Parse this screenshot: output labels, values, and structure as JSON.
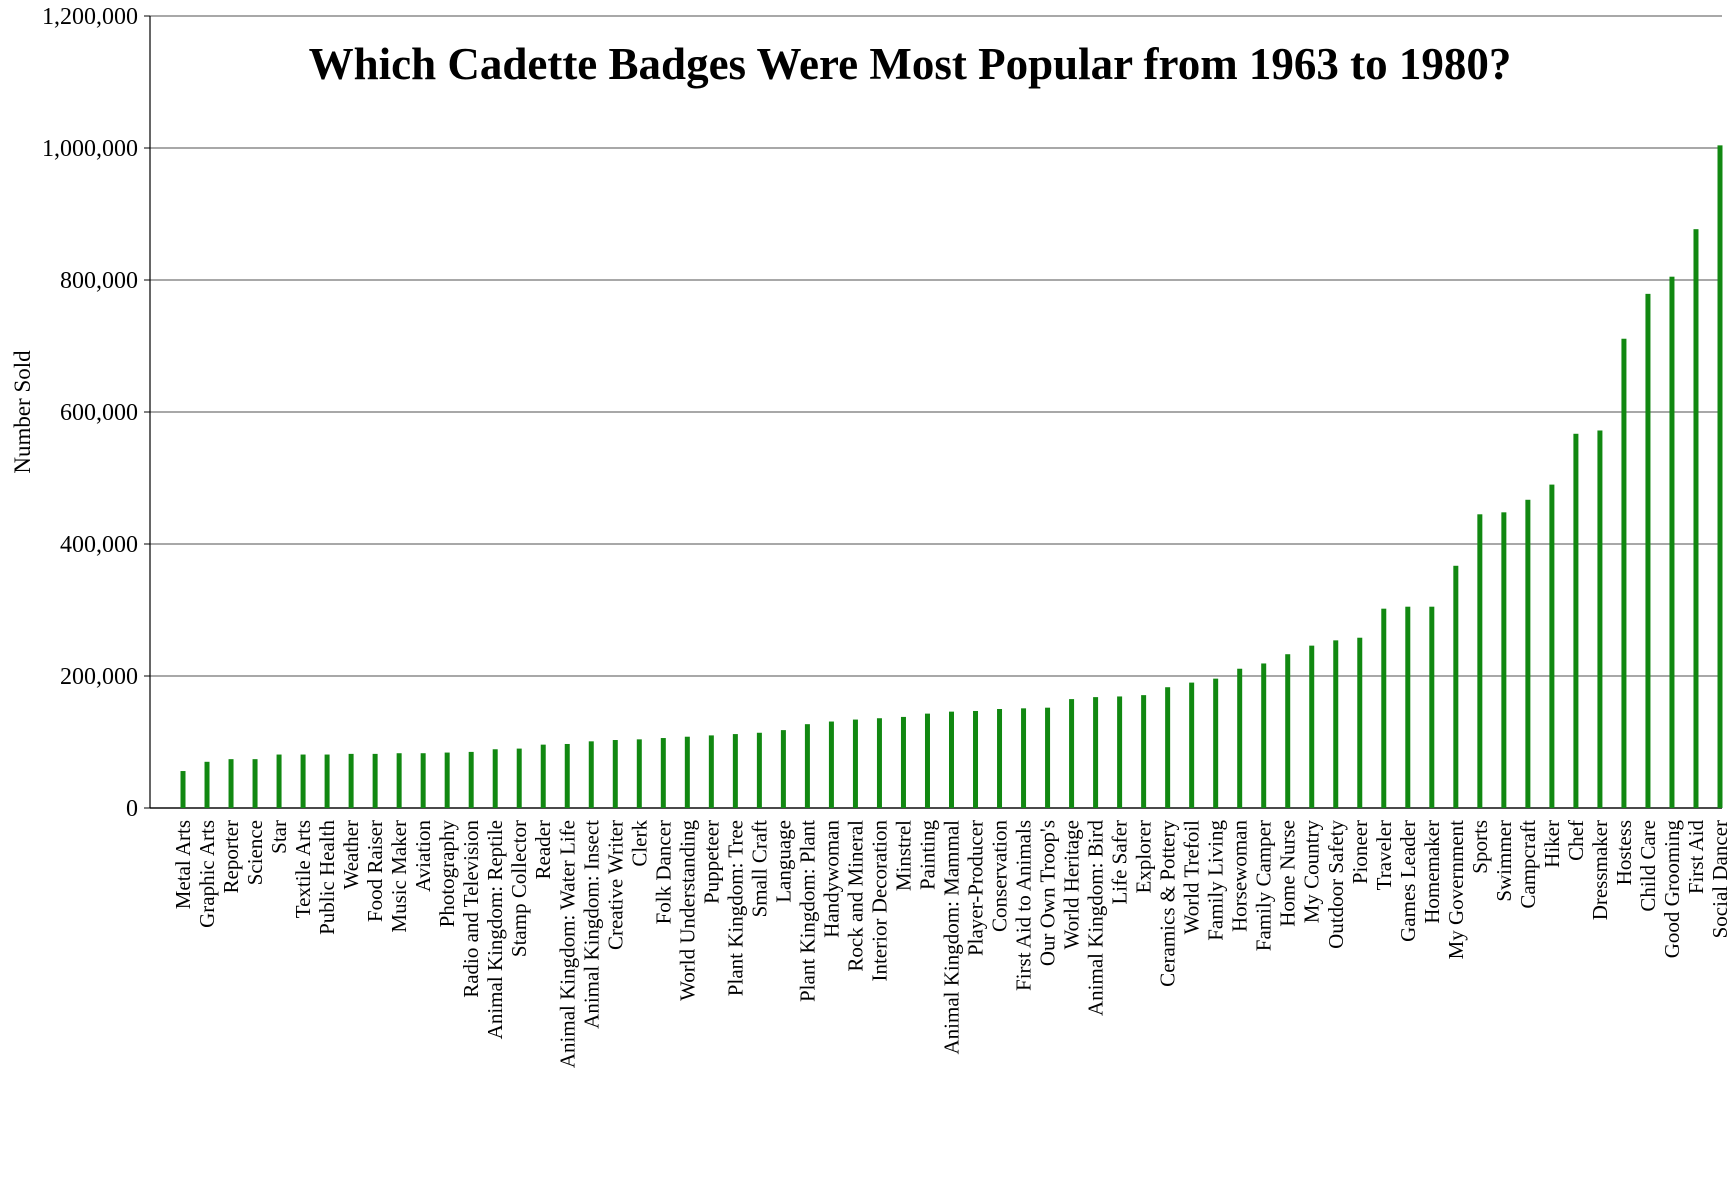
{
  "chart_data": {
    "type": "bar",
    "title": "Which Cadette Badges Were Most Popular from 1963 to 1980?",
    "xlabel": "",
    "ylabel": "Number Sold",
    "ylim": [
      0,
      1200000
    ],
    "yticks": [
      0,
      200000,
      400000,
      600000,
      800000,
      1000000,
      1200000
    ],
    "ytick_labels": [
      "0",
      "200,000",
      "400,000",
      "600,000",
      "800,000",
      "1,000,000",
      "1,200,000"
    ],
    "grid": true,
    "legend": "none",
    "bar_color": "#118811",
    "categories": [
      "Metal Arts",
      "Graphic Arts",
      "Reporter",
      "Science",
      "Star",
      "Textile Arts",
      "Public Health",
      "Weather",
      "Food Raiser",
      "Music Maker",
      "Aviation",
      "Photography",
      "Radio and Television",
      "Animal Kingdom: Reptile",
      "Stamp Collector",
      "Reader",
      "Animal Kingdom: Water Life",
      "Animal Kingdom: Insect",
      "Creative Writer",
      "Clerk",
      "Folk Dancer",
      "World Understanding",
      "Puppeteer",
      "Plant Kingdom: Tree",
      "Small Craft",
      "Language",
      "Plant Kingdom: Plant",
      "Handywoman",
      "Rock and Mineral",
      "Interior Decoration",
      "Minstrel",
      "Painting",
      "Animal Kingdom: Mammal",
      "Player-Producer",
      "Conservation",
      "First Aid to Animals",
      "Our Own Troop's",
      "World Heritage",
      "Animal Kingdom: Bird",
      "Life Safer",
      "Explorer",
      "Ceramics & Pottery",
      "World Trefoil",
      "Family Living",
      "Horsewoman",
      "Family Camper",
      "Home Nurse",
      "My Country",
      "Outdoor Safety",
      "Pioneer",
      "Traveler",
      "Games Leader",
      "Homemaker",
      "My Government",
      "Sports",
      "Swimmer",
      "Campcraft",
      "Hiker",
      "Chef",
      "Dressmaker",
      "Hostess",
      "Child Care",
      "Good Grooming",
      "First Aid",
      "Social Dancer"
    ],
    "values": [
      56000,
      70000,
      74000,
      74000,
      81000,
      81000,
      81000,
      82000,
      82000,
      83000,
      83000,
      84000,
      85000,
      89000,
      90000,
      96000,
      97000,
      101000,
      103000,
      104000,
      106000,
      108000,
      110000,
      112000,
      114000,
      118000,
      127000,
      131000,
      134000,
      136000,
      138000,
      143000,
      146000,
      147000,
      150000,
      151000,
      152000,
      165000,
      168000,
      169000,
      171000,
      183000,
      190000,
      196000,
      211000,
      219000,
      233000,
      246000,
      254000,
      258000,
      302000,
      305000,
      305000,
      367000,
      445000,
      448000,
      467000,
      490000,
      567000,
      572000,
      711000,
      779000,
      805000,
      877000,
      1004000
    ]
  }
}
